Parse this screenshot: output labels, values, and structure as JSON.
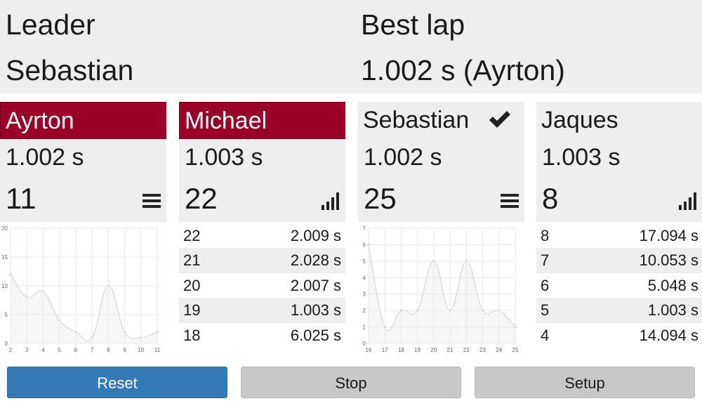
{
  "header": {
    "leader_label": "Leader",
    "leader_value": "Sebastian",
    "bestlap_label": "Best lap",
    "bestlap_value": "1.002 s (Ayrton)"
  },
  "drivers": [
    {
      "name": "Ayrton",
      "time": "1.002 s",
      "laps": "11",
      "highlight": true,
      "toggle_icon": "list-icon",
      "view": "chart",
      "chart_data": {
        "type": "line",
        "x": [
          2,
          3,
          4,
          5,
          6,
          7,
          8,
          9,
          10,
          11
        ],
        "series": [
          {
            "values": [
              12,
              8,
              9,
              4,
              2,
              1,
              10,
              2,
              1,
              2
            ]
          }
        ],
        "xlim": [
          2,
          11
        ],
        "ylim": [
          0,
          20
        ],
        "yticks": [
          0,
          5,
          10,
          15,
          20
        ],
        "grid": true,
        "color": "#dddddd"
      }
    },
    {
      "name": "Michael",
      "time": "1.003 s",
      "laps": "22",
      "highlight": true,
      "toggle_icon": "bar-chart-icon",
      "view": "table",
      "laps_table": [
        {
          "lap": "22",
          "time": "2.009 s"
        },
        {
          "lap": "21",
          "time": "2.028 s"
        },
        {
          "lap": "20",
          "time": "2.007 s"
        },
        {
          "lap": "19",
          "time": "1.003 s"
        },
        {
          "lap": "18",
          "time": "6.025 s"
        }
      ]
    },
    {
      "name": "Sebastian",
      "time": "1.002 s",
      "laps": "25",
      "highlight": false,
      "leader_icon": "checkmark-icon",
      "toggle_icon": "list-icon",
      "view": "chart",
      "chart_data": {
        "type": "line",
        "x": [
          16,
          17,
          18,
          19,
          20,
          21,
          22,
          23,
          24,
          25
        ],
        "series": [
          {
            "values": [
              6,
              1,
              2,
              2,
              5,
              2,
              5,
              2,
              2,
              1
            ]
          }
        ],
        "xlim": [
          16,
          25
        ],
        "ylim": [
          0,
          7
        ],
        "yticks": [
          0,
          1,
          2,
          3,
          4,
          5,
          6,
          7
        ],
        "grid": true,
        "color": "#dddddd"
      }
    },
    {
      "name": "Jaques",
      "time": "1.003 s",
      "laps": "8",
      "highlight": false,
      "toggle_icon": "bar-chart-icon",
      "view": "table",
      "laps_table": [
        {
          "lap": "8",
          "time": "17.094 s"
        },
        {
          "lap": "7",
          "time": "10.053 s"
        },
        {
          "lap": "6",
          "time": "5.048 s"
        },
        {
          "lap": "5",
          "time": "1.003 s"
        },
        {
          "lap": "4",
          "time": "14.094 s"
        }
      ]
    }
  ],
  "buttons": {
    "reset": "Reset",
    "stop": "Stop",
    "setup": "Setup"
  },
  "colors": {
    "highlight": "#9b0029",
    "primary": "#337ab7",
    "secondary": "#c8c8c8",
    "panel": "#eeeeee"
  }
}
